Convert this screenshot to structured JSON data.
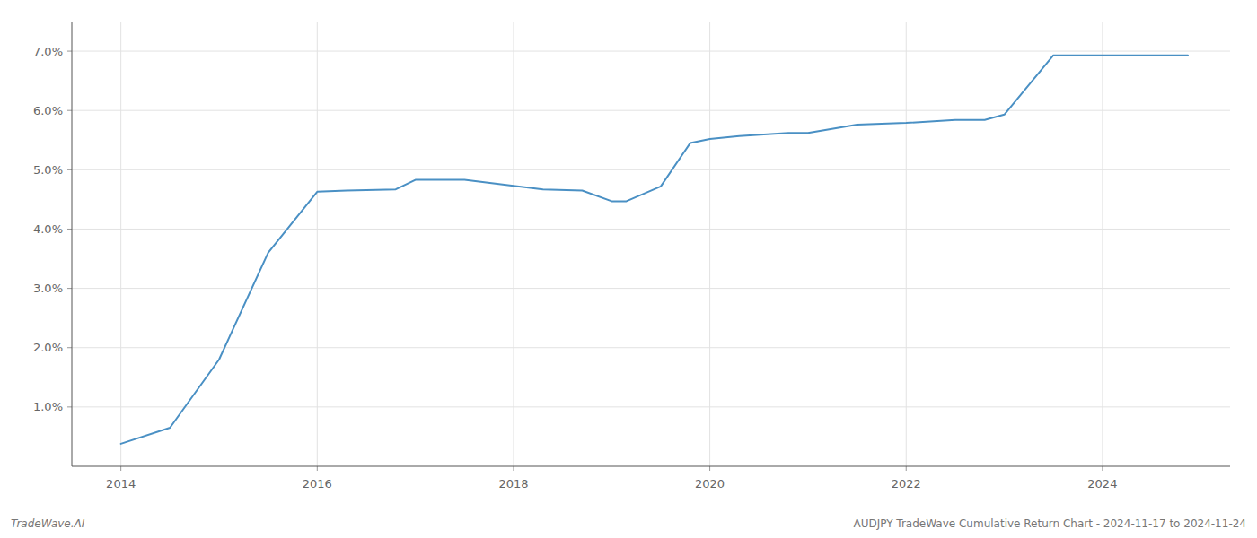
{
  "chart_data": {
    "type": "line",
    "title": "AUDJPY TradeWave Cumulative Return Chart - 2024-11-17 to 2024-11-24",
    "annotations": [
      "TradeWave.AI"
    ],
    "color": "#4a90c4",
    "x": [
      2014.0,
      2014.5,
      2015.0,
      2015.5,
      2016.0,
      2016.3,
      2016.8,
      2017.0,
      2017.5,
      2018.0,
      2018.3,
      2018.7,
      2019.0,
      2019.15,
      2019.5,
      2019.8,
      2020.0,
      2020.3,
      2020.8,
      2021.0,
      2021.5,
      2022.0,
      2022.5,
      2022.8,
      2023.0,
      2023.5,
      2024.0,
      2024.87
    ],
    "values": [
      0.38,
      0.65,
      1.8,
      3.6,
      4.63,
      4.65,
      4.67,
      4.83,
      4.83,
      4.73,
      4.67,
      4.65,
      4.47,
      4.47,
      4.72,
      5.45,
      5.52,
      5.57,
      5.62,
      5.62,
      5.76,
      5.79,
      5.84,
      5.84,
      5.93,
      6.93,
      6.93,
      6.93
    ],
    "xlim": [
      2013.5,
      2025.3
    ],
    "ylim": [
      0.0,
      7.5
    ],
    "xticks": [
      2014,
      2016,
      2018,
      2020,
      2022,
      2024
    ],
    "yticks": [
      {
        "value": 1.0,
        "label": "1.0%"
      },
      {
        "value": 2.0,
        "label": "2.0%"
      },
      {
        "value": 3.0,
        "label": "3.0%"
      },
      {
        "value": 4.0,
        "label": "4.0%"
      },
      {
        "value": 5.0,
        "label": "5.0%"
      },
      {
        "value": 6.0,
        "label": "6.0%"
      },
      {
        "value": 7.0,
        "label": "7.0%"
      }
    ],
    "grid": true
  }
}
